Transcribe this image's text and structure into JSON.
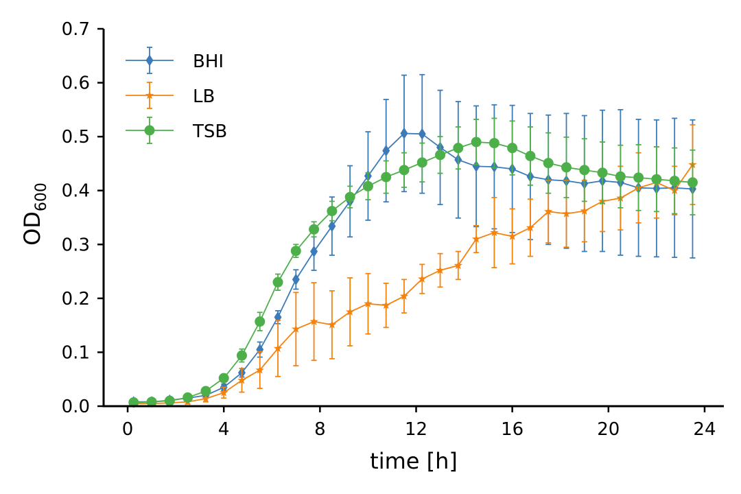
{
  "chart_data": {
    "type": "line",
    "title": "",
    "xlabel": "time [h]",
    "ylabel_main": "OD",
    "ylabel_sub": "600",
    "xlim": [
      -1,
      24.8
    ],
    "ylim": [
      0,
      0.7
    ],
    "xticks": [
      0,
      4,
      8,
      12,
      16,
      20,
      24
    ],
    "yticks": [
      0.0,
      0.1,
      0.2,
      0.3,
      0.4,
      0.5,
      0.6,
      0.7
    ],
    "xtick_labels": [
      "0",
      "4",
      "8",
      "12",
      "16",
      "20",
      "24"
    ],
    "ytick_labels": [
      "0.0",
      "0.1",
      "0.2",
      "0.3",
      "0.4",
      "0.5",
      "0.6",
      "0.7"
    ],
    "grid": false,
    "legend_position": "top-left",
    "x": [
      0.25,
      1.0,
      1.75,
      2.5,
      3.25,
      4.0,
      4.75,
      5.5,
      6.25,
      7.0,
      7.75,
      8.5,
      9.25,
      10.0,
      10.75,
      11.5,
      12.25,
      13.0,
      13.75,
      14.5,
      15.25,
      16.0,
      16.75,
      17.5,
      18.25,
      19.0,
      19.75,
      20.5,
      21.25,
      22.0,
      22.75,
      23.5
    ],
    "series": [
      {
        "name": "BHI",
        "color": "#3a7bb8",
        "marker": "diamond",
        "values": [
          0.008,
          0.008,
          0.011,
          0.015,
          0.02,
          0.035,
          0.062,
          0.105,
          0.165,
          0.235,
          0.287,
          0.334,
          0.38,
          0.427,
          0.474,
          0.506,
          0.505,
          0.48,
          0.457,
          0.445,
          0.444,
          0.44,
          0.426,
          0.42,
          0.418,
          0.413,
          0.418,
          0.415,
          0.405,
          0.404,
          0.405,
          0.403
        ],
        "errors": [
          0.002,
          0.002,
          0.002,
          0.003,
          0.004,
          0.006,
          0.008,
          0.014,
          0.012,
          0.018,
          0.035,
          0.054,
          0.066,
          0.082,
          0.095,
          0.108,
          0.11,
          0.106,
          0.108,
          0.112,
          0.115,
          0.118,
          0.117,
          0.12,
          0.125,
          0.126,
          0.131,
          0.135,
          0.127,
          0.127,
          0.129,
          0.128
        ]
      },
      {
        "name": "LB",
        "color": "#f5820d",
        "marker": "star",
        "values": [
          0.005,
          0.005,
          0.006,
          0.008,
          0.014,
          0.025,
          0.048,
          0.067,
          0.107,
          0.143,
          0.157,
          0.151,
          0.175,
          0.19,
          0.187,
          0.204,
          0.236,
          0.252,
          0.261,
          0.31,
          0.322,
          0.315,
          0.331,
          0.361,
          0.357,
          0.362,
          0.38,
          0.386,
          0.405,
          0.415,
          0.4,
          0.448
        ],
        "errors": [
          0.002,
          0.002,
          0.003,
          0.004,
          0.006,
          0.01,
          0.022,
          0.034,
          0.052,
          0.068,
          0.072,
          0.063,
          0.063,
          0.056,
          0.041,
          0.031,
          0.027,
          0.031,
          0.026,
          0.025,
          0.065,
          0.051,
          0.053,
          0.058,
          0.062,
          0.057,
          0.056,
          0.059,
          0.065,
          0.066,
          0.045,
          0.074
        ]
      },
      {
        "name": "TSB",
        "color": "#4daf4a",
        "marker": "circle",
        "values": [
          0.007,
          0.008,
          0.01,
          0.016,
          0.028,
          0.052,
          0.094,
          0.157,
          0.23,
          0.288,
          0.328,
          0.362,
          0.388,
          0.408,
          0.425,
          0.438,
          0.452,
          0.466,
          0.479,
          0.49,
          0.488,
          0.479,
          0.464,
          0.451,
          0.443,
          0.438,
          0.433,
          0.426,
          0.424,
          0.421,
          0.418,
          0.415
        ],
        "errors": [
          0.002,
          0.002,
          0.003,
          0.004,
          0.005,
          0.007,
          0.012,
          0.017,
          0.015,
          0.012,
          0.014,
          0.018,
          0.02,
          0.025,
          0.03,
          0.032,
          0.036,
          0.034,
          0.039,
          0.042,
          0.046,
          0.05,
          0.054,
          0.056,
          0.056,
          0.058,
          0.057,
          0.058,
          0.061,
          0.06,
          0.061,
          0.06
        ]
      }
    ]
  }
}
